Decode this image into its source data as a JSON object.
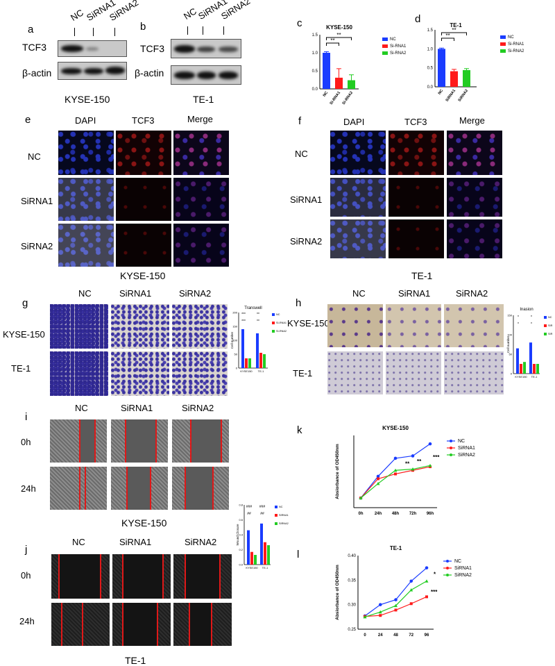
{
  "panel_letters": {
    "a": "a",
    "b": "b",
    "c": "c",
    "d": "d",
    "e": "e",
    "f": "f",
    "g": "g",
    "h": "h",
    "i": "i",
    "j": "j",
    "k": "k",
    "l": "l"
  },
  "western": {
    "lanes": [
      "NC",
      "SiRNA1",
      "SiRNA2"
    ],
    "tcf3": "TCF3",
    "actin": "β-actin",
    "cell_a": "KYSE-150",
    "cell_b": "TE-1"
  },
  "fluor": {
    "cols": [
      "DAPI",
      "TCF3",
      "Merge"
    ],
    "rows": [
      "NC",
      "SiRNA1",
      "SiRNA2"
    ],
    "cell_e": "KYSE-150",
    "cell_f": "TE-1"
  },
  "migration": {
    "cols": [
      "NC",
      "SiRNA1",
      "SiRNA2"
    ],
    "rows": [
      "KYSE-150",
      "TE-1"
    ]
  },
  "wound": {
    "cols": [
      "NC",
      "SiRNA1",
      "SiRNA2"
    ],
    "rows": [
      "0h",
      "24h"
    ],
    "cell_i": "KYSE-150",
    "cell_j": "TE-1"
  },
  "chart_data": [
    {
      "id": "c",
      "type": "bar",
      "title": "KYSE-150",
      "categories": [
        "NC",
        "Si-RNA1",
        "Si-RNA2"
      ],
      "values": [
        1.0,
        0.31,
        0.24
      ],
      "errors": [
        0.03,
        0.25,
        0.15
      ],
      "colors": [
        "#1a3cff",
        "#ff1a1a",
        "#22cc22"
      ],
      "ylim": [
        0,
        1.5
      ],
      "yticks": [
        "0.0",
        "0.5",
        "1.0",
        "1.5"
      ],
      "legend": [
        "NC",
        "Si-RNA1",
        "Si-RNA2"
      ],
      "sig": [
        "**",
        "**"
      ]
    },
    {
      "id": "d",
      "type": "bar",
      "title": "TE-1",
      "categories": [
        "NC",
        "SiRNA1",
        "SiRNA2"
      ],
      "values": [
        1.0,
        0.41,
        0.44
      ],
      "errors": [
        0.02,
        0.05,
        0.04
      ],
      "colors": [
        "#1a3cff",
        "#ff1a1a",
        "#22cc22"
      ],
      "ylim": [
        0,
        1.5
      ],
      "yticks": [
        "0.0",
        "0.5",
        "1.0",
        "1.5"
      ],
      "legend": [
        "NC",
        "Si-RNA1",
        "Si-RNA2"
      ],
      "sig": [
        "**",
        "**"
      ]
    },
    {
      "id": "g",
      "type": "bar",
      "title": "Transwell",
      "ylabel": "Cell number",
      "groups": [
        "KYSE150",
        "TE-1"
      ],
      "values": [
        [
          140,
          35,
          35
        ],
        [
          125,
          55,
          50
        ]
      ],
      "colors": [
        "#1a3cff",
        "#ff1a1a",
        "#22cc22"
      ],
      "ylim": [
        0,
        200
      ],
      "yticks": [
        "0",
        "50",
        "100",
        "150",
        "200"
      ],
      "legend": [
        "NC",
        "SI-RNA1",
        "SI-RNA2"
      ],
      "sig": [
        "***",
        "***",
        "**",
        "**"
      ]
    },
    {
      "id": "h",
      "type": "bar",
      "title": "Inasion",
      "ylabel": "Cell number",
      "groups": [
        "KYSE150",
        "TE-1"
      ],
      "values": [
        [
          65,
          25,
          30
        ],
        [
          80,
          25,
          25
        ]
      ],
      "colors": [
        "#1a3cff",
        "#ff1a1a",
        "#22cc22"
      ],
      "ylim": [
        0,
        150
      ],
      "yticks": [
        "0",
        "50",
        "100",
        "150"
      ],
      "legend": [
        "NC",
        "SIR",
        "SIR"
      ],
      "sig": [
        "*",
        "*",
        "*",
        "*"
      ]
    },
    {
      "id": "ij",
      "type": "bar",
      "ylabel": "Wound Closure",
      "groups": [
        "KYSE150",
        "TE-1"
      ],
      "values": [
        [
          0.46,
          0.17,
          0.13
        ],
        [
          0.55,
          0.3,
          0.26
        ]
      ],
      "colors": [
        "#1a3cff",
        "#ff1a1a",
        "#22cc22"
      ],
      "ylim": [
        0,
        0.8
      ],
      "yticks": [
        "0.0",
        "0.2",
        "0.4",
        "0.6",
        "0.8"
      ],
      "legend": [
        "NC",
        "SIRNA1",
        "SIRNA2"
      ],
      "sig": [
        "###",
        "##",
        "###",
        "##"
      ]
    },
    {
      "id": "k",
      "type": "line",
      "title": "KYSE-150",
      "ylabel": "Absiorbance of OD450nm",
      "x": [
        "0h",
        "24h",
        "48h",
        "72h",
        "96h"
      ],
      "series": [
        {
          "name": "NC",
          "color": "#1a3cff",
          "marker": "circle",
          "values": [
            0.19,
            0.28,
            0.355,
            0.365,
            0.415
          ]
        },
        {
          "name": "SiRNA1",
          "color": "#ff1a1a",
          "marker": "square",
          "values": [
            0.19,
            0.27,
            0.29,
            0.305,
            0.32
          ]
        },
        {
          "name": "SiRNA2",
          "color": "#22cc22",
          "marker": "triangle",
          "values": [
            0.19,
            0.25,
            0.305,
            0.31,
            0.325
          ]
        }
      ],
      "ylim": [
        0.15,
        0.45
      ],
      "annotations": [
        "**",
        "**",
        "***"
      ]
    },
    {
      "id": "l",
      "type": "line",
      "title": "TE-1",
      "ylabel": "Absiorbance of OD450nm",
      "x": [
        "0",
        "24",
        "48",
        "72",
        "96"
      ],
      "series": [
        {
          "name": "NC",
          "color": "#1a3cff",
          "marker": "circle",
          "values": [
            0.277,
            0.3,
            0.31,
            0.348,
            0.375
          ]
        },
        {
          "name": "SiRNA1",
          "color": "#ff1a1a",
          "marker": "square",
          "values": [
            0.276,
            0.278,
            0.289,
            0.302,
            0.316
          ]
        },
        {
          "name": "SiRNA2",
          "color": "#22cc22",
          "marker": "triangle",
          "values": [
            0.275,
            0.285,
            0.298,
            0.33,
            0.348
          ]
        }
      ],
      "ylim": [
        0.25,
        0.4
      ],
      "yticks": [
        "0.25",
        "0.30",
        "0.35",
        "0.40"
      ],
      "annotations": [
        "*",
        "***"
      ]
    }
  ]
}
